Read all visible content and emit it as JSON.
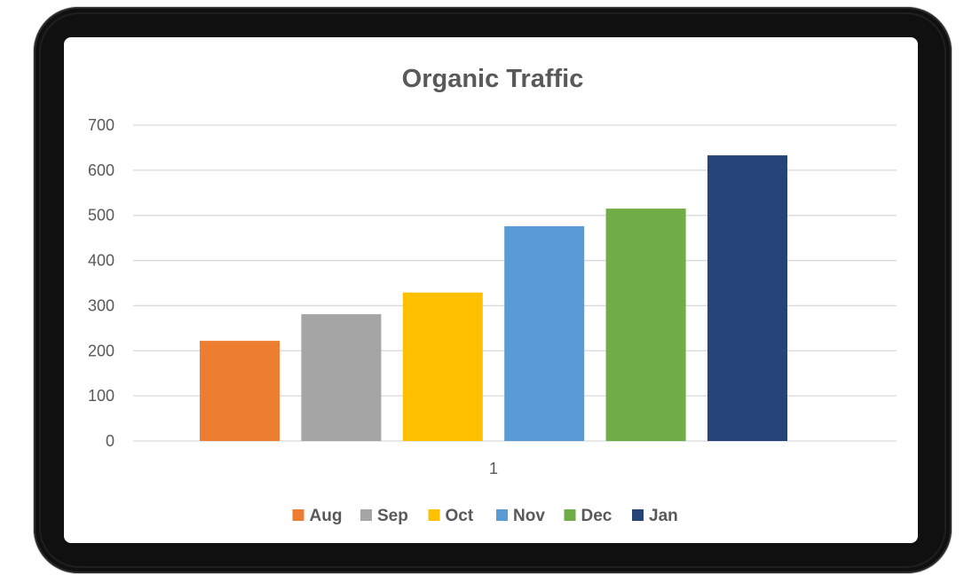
{
  "chart_data": {
    "type": "bar",
    "title": "Organic Traffic",
    "categories": [
      "1"
    ],
    "xlabel": "",
    "ylabel": "",
    "ylim": [
      0,
      700
    ],
    "yticks": [
      0,
      100,
      200,
      300,
      400,
      500,
      600,
      700
    ],
    "grid": true,
    "legend_position": "bottom",
    "series": [
      {
        "name": "Aug",
        "values": [
          222
        ],
        "color": "#ED7D31"
      },
      {
        "name": "Sep",
        "values": [
          281
        ],
        "color": "#A5A5A5"
      },
      {
        "name": "Oct",
        "values": [
          329
        ],
        "color": "#FFC000"
      },
      {
        "name": "Nov",
        "values": [
          476
        ],
        "color": "#5B9BD5"
      },
      {
        "name": "Dec",
        "values": [
          515
        ],
        "color": "#70AD47"
      },
      {
        "name": "Jan",
        "values": [
          633
        ],
        "color": "#264478"
      }
    ]
  }
}
